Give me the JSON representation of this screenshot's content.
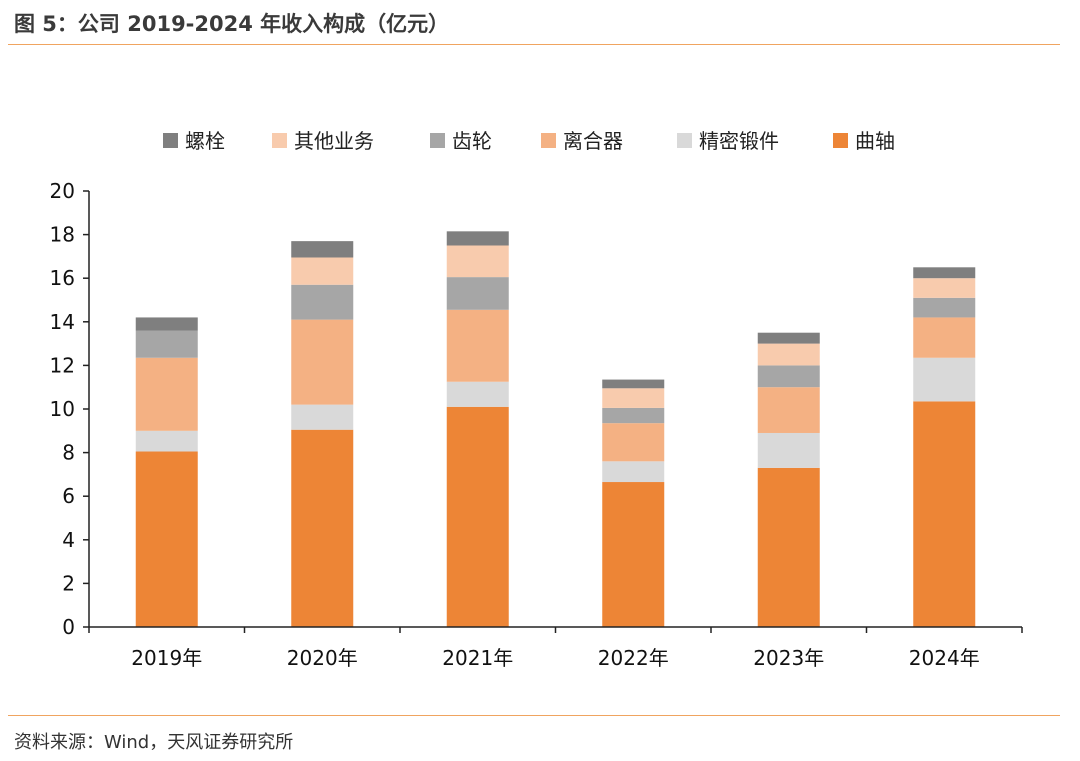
{
  "header": {
    "title": "图 5：公司 2019-2024 年收入构成（亿元）"
  },
  "footer": {
    "source": "资料来源：Wind，天风证券研究所"
  },
  "chart_data": {
    "type": "bar",
    "stacked": true,
    "title": "",
    "xlabel": "",
    "ylabel": "",
    "ylim": [
      0,
      20
    ],
    "yticks": [
      0,
      2,
      4,
      6,
      8,
      10,
      12,
      14,
      16,
      18,
      20
    ],
    "categories": [
      "2019年",
      "2020年",
      "2021年",
      "2022年",
      "2023年",
      "2024年"
    ],
    "legend_position": "top",
    "grid": false,
    "series": [
      {
        "name": "曲轴",
        "color": "#ed8536",
        "values": [
          8.05,
          9.05,
          10.1,
          6.65,
          7.3,
          10.35
        ]
      },
      {
        "name": "精密锻件",
        "color": "#d9d9d9",
        "values": [
          0.95,
          1.15,
          1.15,
          0.95,
          1.6,
          2.0
        ]
      },
      {
        "name": "离合器",
        "color": "#f4b183",
        "values": [
          3.35,
          3.9,
          3.3,
          1.75,
          2.1,
          1.85
        ]
      },
      {
        "name": "齿轮",
        "color": "#a6a6a6",
        "values": [
          1.25,
          1.6,
          1.5,
          0.7,
          1.0,
          0.9
        ]
      },
      {
        "name": "其他业务",
        "color": "#f8cbad",
        "values": [
          0.0,
          1.25,
          1.45,
          0.9,
          1.0,
          0.9
        ]
      },
      {
        "name": "螺栓",
        "color": "#7f7f7f",
        "values": [
          0.6,
          0.75,
          0.65,
          0.4,
          0.5,
          0.5
        ]
      }
    ],
    "legend_order": [
      "螺栓",
      "其他业务",
      "齿轮",
      "离合器",
      "精密锻件",
      "曲轴"
    ]
  }
}
